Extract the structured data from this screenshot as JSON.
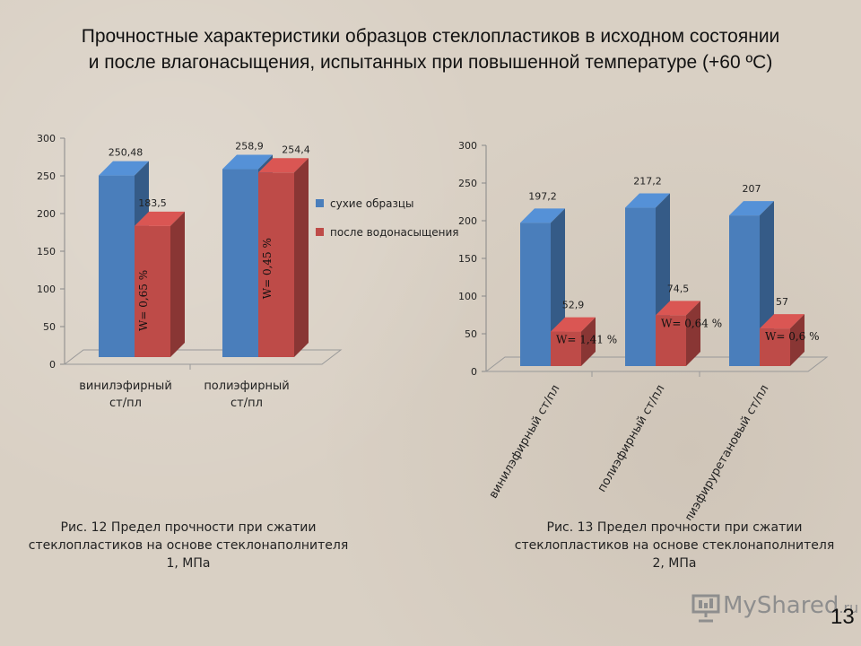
{
  "title": "Прочностные характеристики образцов стеклопластиков в исходном состоянии и после влагонасыщения, испытанных при повышенной температуре (+60 ºС)",
  "legend": {
    "dry": "сухие образцы",
    "wet": "после водонасыщения"
  },
  "chart_data": [
    {
      "type": "bar",
      "categories": [
        "винилэфирный ст/пл",
        "полиэфирный ст/пл"
      ],
      "series": [
        {
          "name": "сухие образцы",
          "values": [
            250.48,
            258.9
          ],
          "labels": [
            "250,48",
            "258,9"
          ]
        },
        {
          "name": "после водонасыщения",
          "values": [
            183.5,
            254.4
          ],
          "labels": [
            "183,5",
            "254,4"
          ]
        }
      ],
      "w_labels": [
        "W= 0,65 %",
        "W= 0,45 %"
      ],
      "yticks": [
        0,
        50,
        100,
        150,
        200,
        250,
        300
      ],
      "ylim": [
        0,
        300
      ],
      "legend_position": "right",
      "caption": "Рис. 12 Предел прочности при сжатии стеклопластиков на основе стеклонаполнителя 1, МПа"
    },
    {
      "type": "bar",
      "categories": [
        "винилэфирный ст/пл",
        "полиэфирный ст/пл",
        "полиэфируретановый ст/пл"
      ],
      "series": [
        {
          "name": "сухие образцы",
          "values": [
            197.2,
            217.2,
            207
          ],
          "labels": [
            "197,2",
            "217,2",
            "207"
          ]
        },
        {
          "name": "после водонасыщения",
          "values": [
            52.9,
            74.5,
            57
          ],
          "labels": [
            "52,9",
            "74,5",
            "57"
          ]
        }
      ],
      "w_labels": [
        "W= 1,41  %",
        "W= 0,64  %",
        "W= 0,6  %"
      ],
      "yticks": [
        0,
        50,
        100,
        150,
        200,
        250,
        300
      ],
      "ylim": [
        0,
        300
      ],
      "caption": "Рис. 13 Предел прочности при сжатии стеклопластиков на основе стеклонаполнителя 2, МПа"
    }
  ],
  "colors": {
    "dry": "#4a7ebb",
    "wet": "#be4b48"
  },
  "logo": {
    "text": "MyShared",
    "suffix": ".ru"
  },
  "page_number": "13"
}
